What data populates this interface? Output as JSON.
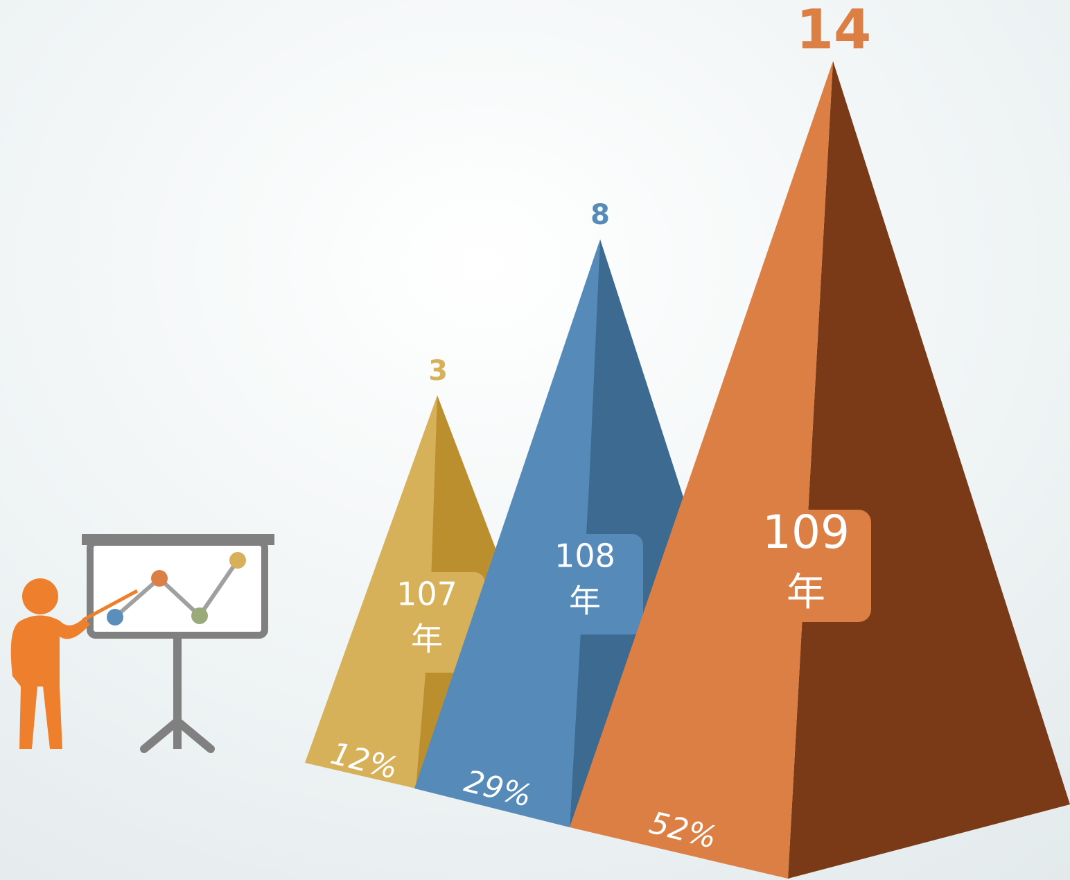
{
  "items": [
    {
      "top": "3",
      "year": "107",
      "unit": "年",
      "share": "12%"
    },
    {
      "top": "8",
      "year": "108",
      "unit": "年",
      "share": "29%"
    },
    {
      "top": "14",
      "year": "109",
      "unit": "年",
      "share": "52%"
    }
  ]
}
